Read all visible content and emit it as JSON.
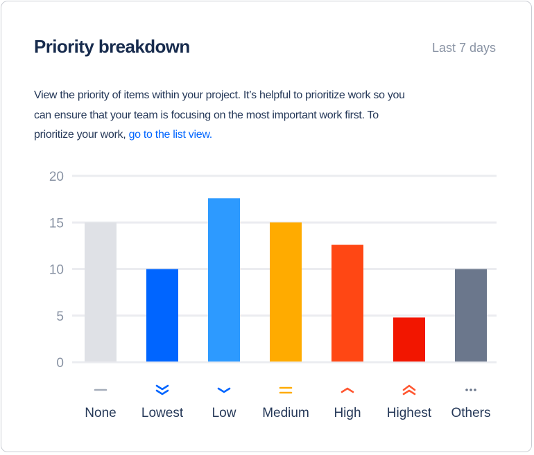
{
  "header": {
    "title": "Priority breakdown",
    "range": "Last 7 days"
  },
  "description": {
    "lines": [
      "View the priority of items within your project. It’s helpful to prioritize work so you",
      "can ensure that your team is focusing on the most important work first. To",
      "prioritize your work, "
    ],
    "link": "go to the list view."
  },
  "chart_data": {
    "type": "bar",
    "categories": [
      "None",
      "Lowest",
      "Low",
      "Medium",
      "High",
      "Highest",
      "Others"
    ],
    "values": [
      15,
      10,
      17.6,
      15,
      12.6,
      4.8,
      10
    ],
    "colors": [
      "#DFE1E6",
      "#0065FF",
      "#2D9AFF",
      "#FFAB00",
      "#FF4714",
      "#F21600",
      "#6B778C"
    ],
    "icons": [
      "dash-icon",
      "double-chevron-down-icon",
      "chevron-down-icon",
      "equals-icon",
      "chevron-up-icon",
      "double-chevron-up-icon",
      "ellipsis-icon"
    ],
    "icon_colors": [
      "#A5ADBA",
      "#0065FF",
      "#0065FF",
      "#FFAB00",
      "#FF5630",
      "#FF5630",
      "#6B778C"
    ],
    "yticks": [
      0,
      5,
      10,
      15,
      20
    ],
    "ylim": [
      0,
      20
    ],
    "grid": true
  }
}
